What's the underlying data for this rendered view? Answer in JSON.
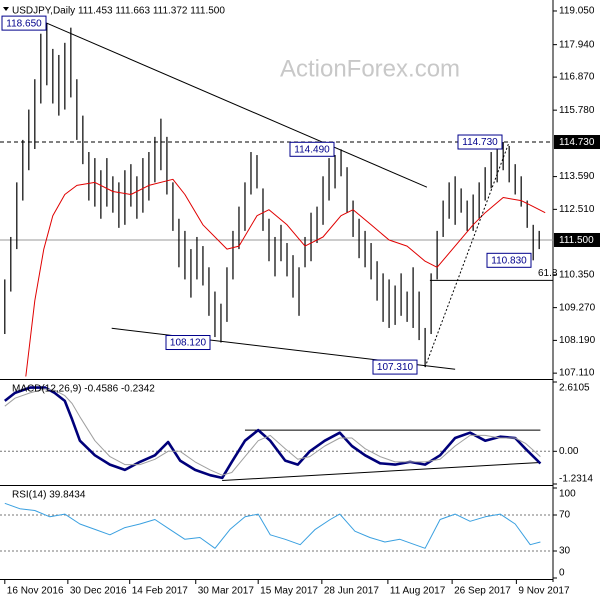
{
  "watermark": "ActionForex.com",
  "chart_data": [
    {
      "type": "ohlc",
      "title": "USDJPY,Daily  111.453 111.663 111.372 111.500",
      "color": "#000000",
      "high": [
        110.2,
        111.6,
        113.4,
        114.8,
        115.8,
        116.8,
        118.3,
        118.65,
        117.8,
        117.6,
        118.0,
        118.5,
        116.8,
        115.6,
        114.4,
        114.2,
        113.8,
        114.2,
        113.6,
        113.4,
        113.8,
        114.0,
        113.6,
        114.2,
        114.4,
        114.9,
        115.5,
        114.9,
        113.4,
        112.2,
        111.8,
        111.2,
        111.6,
        111.3,
        110.6,
        109.8,
        109.4,
        110.6,
        111.8,
        112.6,
        113.4,
        114.4,
        114.3,
        113.2,
        112.2,
        111.6,
        112.0,
        111.4,
        111.0,
        110.6,
        111.6,
        112.4,
        112.6,
        113.6,
        114.2,
        114.3,
        114.49,
        113.9,
        112.8,
        112.2,
        111.8,
        111.4,
        110.8,
        110.4,
        110.2,
        110.0,
        110.4,
        109.8,
        110.6,
        109.8,
        108.6,
        110.4,
        111.8,
        112.8,
        113.4,
        113.6,
        113.2,
        112.8,
        113.0,
        113.4,
        113.9,
        114.4,
        114.5,
        114.73,
        114.6,
        114.0,
        113.6,
        112.8,
        112.0,
        111.8
      ],
      "low": [
        108.4,
        109.8,
        111.2,
        112.8,
        113.8,
        114.5,
        116.0,
        116.6,
        116.0,
        115.6,
        115.8,
        116.2,
        114.8,
        114.0,
        112.8,
        112.6,
        112.2,
        112.6,
        112.4,
        111.9,
        112.0,
        112.6,
        112.2,
        112.4,
        112.8,
        113.4,
        113.8,
        113.0,
        111.8,
        110.6,
        110.2,
        109.6,
        110.2,
        110.0,
        109.0,
        108.3,
        108.12,
        108.8,
        110.2,
        111.2,
        111.8,
        113.0,
        113.2,
        111.8,
        110.8,
        110.3,
        110.8,
        110.3,
        109.6,
        109.0,
        110.6,
        110.8,
        111.4,
        112.0,
        112.8,
        113.2,
        113.6,
        112.4,
        111.6,
        110.9,
        110.6,
        110.2,
        109.5,
        108.8,
        108.6,
        108.7,
        109.0,
        108.8,
        108.6,
        108.2,
        107.31,
        108.4,
        110.2,
        111.6,
        112.2,
        112.0,
        112.4,
        111.8,
        111.8,
        112.2,
        112.8,
        113.2,
        113.4,
        113.8,
        113.4,
        113.0,
        112.6,
        111.9,
        110.83,
        111.2
      ],
      "overlays": [
        {
          "color": "#e00000",
          "x": [
            3.5,
            5,
            6.5,
            8,
            10,
            12,
            15,
            18,
            21,
            24,
            28,
            30,
            33,
            37,
            39,
            42,
            44,
            47,
            50,
            53,
            56,
            58,
            61,
            64,
            67,
            70,
            72,
            75,
            78,
            80,
            83,
            86,
            88,
            90
          ],
          "values": [
            107.0,
            109.5,
            111.2,
            112.3,
            113.0,
            113.3,
            113.4,
            113.1,
            113.0,
            113.3,
            113.5,
            113.0,
            112.0,
            111.2,
            111.3,
            112.3,
            112.5,
            112.0,
            111.3,
            111.6,
            112.3,
            112.5,
            112.0,
            111.5,
            111.3,
            110.8,
            110.6,
            111.3,
            112.0,
            112.4,
            112.9,
            112.8,
            112.6,
            112.4
          ]
        }
      ],
      "trendlines": [
        {
          "x": [
            5.8,
            70.3
          ],
          "y": [
            118.75,
            113.24
          ],
          "style": "solid"
        },
        {
          "x": [
            17.8,
            75
          ],
          "y": [
            108.59,
            107.24
          ],
          "style": "solid"
        },
        {
          "x": [
            70,
            84
          ],
          "y": [
            107.31,
            114.73
          ],
          "style": "dotted"
        }
      ],
      "price_markers": [
        {
          "value": 114.73,
          "label": "114.730",
          "line": "dashed"
        },
        {
          "value": 111.5,
          "label": "111.500",
          "line": "solid"
        }
      ],
      "fib_level": {
        "value": 110.17,
        "label": "61.8",
        "from": 70.8
      },
      "annotations": [
        {
          "value": 118.65,
          "label": "118.650"
        },
        {
          "value": 114.49,
          "label": "114.490"
        },
        {
          "value": 114.73,
          "label": "114.730"
        },
        {
          "value": 108.12,
          "label": "108.120"
        },
        {
          "value": 107.31,
          "label": "107.310"
        },
        {
          "value": 110.83,
          "label": "110.830"
        }
      ],
      "xlim": [
        -0.8,
        91.3
      ],
      "xticks": [
        {
          "value": 0,
          "label": "16 Nov 2016"
        },
        {
          "value": 10.5,
          "label": "30 Dec 2016"
        },
        {
          "value": 20.8,
          "label": "14 Feb 2017"
        },
        {
          "value": 31.8,
          "label": "30 Mar 2017"
        },
        {
          "value": 42.2,
          "label": "15 May 2017"
        },
        {
          "value": 52.8,
          "label": "28 Jun 2017"
        },
        {
          "value": 63.8,
          "label": "11 Aug 2017"
        },
        {
          "value": 74.5,
          "label": "26 Sep 2017"
        },
        {
          "value": 85.2,
          "label": "9 Nov 2017"
        }
      ],
      "ylim": [
        106.95,
        119.28
      ],
      "yticks": [
        {
          "value": 119.05,
          "label": "119.050"
        },
        {
          "value": 117.94,
          "label": "117.940"
        },
        {
          "value": 116.87,
          "label": "116.870"
        },
        {
          "value": 115.78,
          "label": "115.780"
        },
        {
          "value": 113.59,
          "label": "113.590"
        },
        {
          "value": 112.51,
          "label": "112.510"
        },
        {
          "value": 110.35,
          "label": "110.350"
        },
        {
          "value": 109.27,
          "label": "109.270"
        },
        {
          "value": 108.19,
          "label": "108.190"
        },
        {
          "value": 107.11,
          "label": "107.110"
        }
      ],
      "grid": false
    },
    {
      "type": "macd",
      "title": "MACD(12,26,9) -0.4586 -0.2342",
      "x": [
        0,
        1.7,
        4.2,
        6.7,
        8.3,
        10,
        11.2,
        12.5,
        15,
        17.5,
        20,
        22.5,
        25,
        27.2,
        29.2,
        31.7,
        34.2,
        36.2,
        37.8,
        40,
        42.2,
        44.2,
        46.7,
        48.8,
        50.8,
        53.3,
        55.8,
        57.8,
        60,
        62.5,
        65,
        67.5,
        70,
        72.5,
        75,
        77.5,
        80,
        82.5,
        85,
        86.7,
        89.2
      ],
      "series": [
        {
          "color": "#00007a",
          "width": 2.6,
          "values": [
            1.9,
            2.2,
            2.4,
            2.4,
            2.2,
            1.9,
            1.2,
            0.4,
            -0.15,
            -0.5,
            -0.7,
            -0.4,
            -0.15,
            0.35,
            -0.35,
            -0.7,
            -0.9,
            -1.0,
            -0.4,
            0.4,
            0.8,
            0.4,
            -0.35,
            -0.5,
            0,
            0.4,
            0.7,
            0.2,
            -0.15,
            -0.45,
            -0.5,
            -0.4,
            -0.5,
            -0.15,
            0.5,
            0.7,
            0.4,
            0.55,
            0.5,
            0.1,
            -0.46
          ]
        },
        {
          "color": "#a0a0a0",
          "width": 1,
          "values": [
            1.7,
            2.0,
            2.2,
            2.35,
            2.3,
            2.1,
            1.8,
            1.3,
            0.4,
            -0.2,
            -0.5,
            -0.5,
            -0.3,
            0.0,
            0.0,
            -0.4,
            -0.7,
            -0.9,
            -0.8,
            -0.2,
            0.4,
            0.6,
            0.1,
            -0.3,
            -0.2,
            0.2,
            0.5,
            0.5,
            0.1,
            -0.2,
            -0.4,
            -0.4,
            -0.4,
            -0.3,
            0.2,
            0.6,
            0.6,
            0.5,
            0.5,
            0.3,
            -0.2
          ]
        }
      ],
      "trendlines": [
        {
          "x": [
            40,
            89.2
          ],
          "y": [
            0.8,
            0.8
          ],
          "style": "solid"
        },
        {
          "x": [
            36.2,
            89.2
          ],
          "y": [
            -1.1,
            -0.42
          ],
          "style": "solid"
        }
      ],
      "xlim": [
        -0.8,
        91.3
      ],
      "ylim": [
        -1.2314,
        2.6105
      ],
      "yticks": [
        2.6105,
        {
          "value": 0,
          "label": "0.00"
        },
        -1.2314
      ],
      "grid": true
    },
    {
      "type": "rsi",
      "title": "RSI(14) 39.8434",
      "x": [
        0,
        2.5,
        5,
        7.5,
        10,
        12.5,
        15,
        17.5,
        20,
        22.5,
        25,
        27.5,
        30,
        32.5,
        35,
        37.5,
        40,
        42.2,
        44.2,
        46.7,
        49.2,
        51.7,
        54.2,
        55.8,
        58.3,
        60.8,
        63.3,
        65.8,
        68.3,
        70,
        72.5,
        75,
        77.5,
        80,
        82.5,
        85,
        87.5,
        89.2
      ],
      "series": [
        {
          "color": "#3aa0e0",
          "width": 1,
          "values": [
            83,
            77,
            75,
            68,
            71,
            60,
            54,
            48,
            56,
            60,
            65,
            54,
            43,
            45,
            33,
            54,
            68,
            71,
            48,
            43,
            37,
            54,
            65,
            71,
            52,
            45,
            40,
            43,
            37,
            33,
            65,
            71,
            63,
            68,
            71,
            60,
            37,
            40
          ]
        }
      ],
      "xlim": [
        -0.8,
        91.3
      ],
      "ylim": [
        0,
        100
      ],
      "yticks": [
        100,
        70,
        30,
        0
      ],
      "grid": true
    }
  ]
}
